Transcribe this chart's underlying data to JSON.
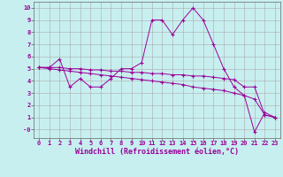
{
  "xlabel": "Windchill (Refroidissement éolien,°C)",
  "ylabel": "",
  "background_color": "#c8eff0",
  "grid_color": "#aaaaaa",
  "line_color": "#990099",
  "xlim": [
    -0.5,
    23.5
  ],
  "ylim": [
    -0.7,
    10.5
  ],
  "xticks": [
    0,
    1,
    2,
    3,
    4,
    5,
    6,
    7,
    8,
    9,
    10,
    11,
    12,
    13,
    14,
    15,
    16,
    17,
    18,
    19,
    20,
    21,
    22,
    23
  ],
  "yticks": [
    0,
    1,
    2,
    3,
    4,
    5,
    6,
    7,
    8,
    9,
    10
  ],
  "ytick_labels": [
    "-0",
    "1",
    "2",
    "3",
    "4",
    "5",
    "6",
    "7",
    "8",
    "9",
    "10"
  ],
  "series1": [
    5.1,
    5.1,
    5.8,
    3.5,
    4.2,
    3.5,
    3.5,
    4.2,
    5.0,
    5.0,
    5.5,
    9.0,
    9.0,
    7.8,
    9.0,
    10.0,
    9.0,
    7.0,
    5.0,
    3.5,
    2.8,
    -0.2,
    1.4,
    1.0
  ],
  "series2": [
    5.1,
    5.1,
    5.1,
    5.0,
    5.0,
    4.9,
    4.9,
    4.8,
    4.8,
    4.7,
    4.7,
    4.6,
    4.6,
    4.5,
    4.5,
    4.4,
    4.4,
    4.3,
    4.2,
    4.1,
    3.5,
    3.5,
    1.2,
    1.0
  ],
  "series3": [
    5.1,
    5.0,
    4.9,
    4.8,
    4.7,
    4.6,
    4.5,
    4.4,
    4.3,
    4.2,
    4.1,
    4.0,
    3.9,
    3.8,
    3.7,
    3.5,
    3.4,
    3.3,
    3.2,
    3.0,
    2.8,
    2.5,
    1.2,
    1.0
  ],
  "tick_fontsize": 5.0,
  "xlabel_fontsize": 6.0
}
